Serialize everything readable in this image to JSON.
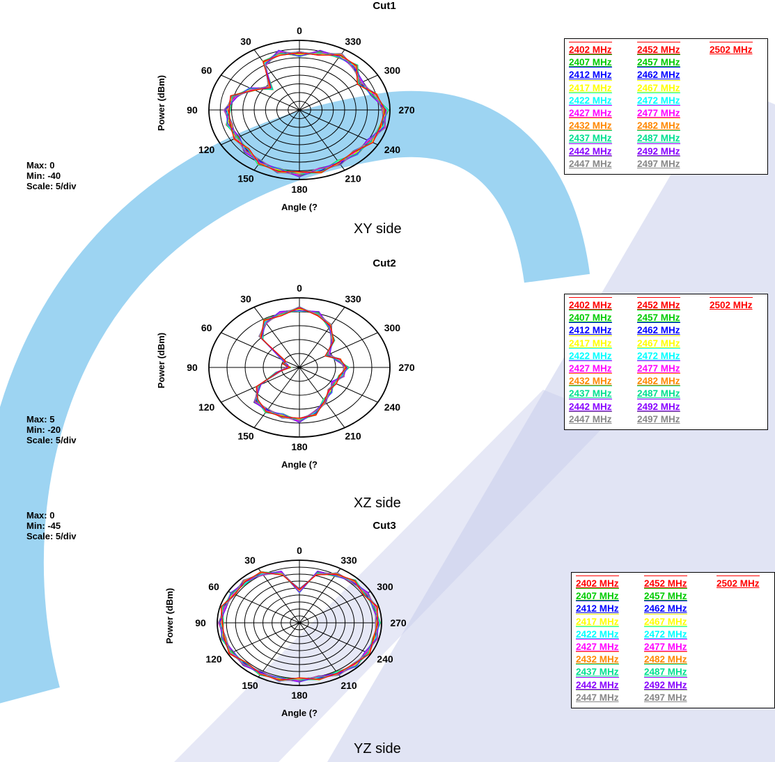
{
  "background": {
    "watermark_colors": {
      "arc": "#8ccdf0",
      "blade": "#c8cdeb"
    }
  },
  "colors": {
    "2402 MHz": "#ff0000",
    "2407 MHz": "#00cc00",
    "2412 MHz": "#0000ff",
    "2417 MHz": "#ffff00",
    "2422 MHz": "#00ffff",
    "2427 MHz": "#ff00ff",
    "2432 MHz": "#ff8800",
    "2437 MHz": "#00e090",
    "2442 MHz": "#8800ff",
    "2447 MHz": "#888888",
    "2452 MHz": "#ff0000",
    "2457 MHz": "#00cc00",
    "2462 MHz": "#0000ff",
    "2467 MHz": "#ffff00",
    "2472 MHz": "#00ffff",
    "2477 MHz": "#ff00ff",
    "2482 MHz": "#ff8800",
    "2487 MHz": "#00e090",
    "2492 MHz": "#8800ff",
    "2497 MHz": "#888888",
    "2502 MHz": "#ff0000"
  },
  "legend_columns": [
    [
      "2402 MHz",
      "2407 MHz",
      "2412 MHz",
      "2417 MHz",
      "2422 MHz",
      "2427 MHz",
      "2432 MHz",
      "2437 MHz",
      "2442 MHz",
      "2447 MHz"
    ],
    [
      "2452 MHz",
      "2457 MHz",
      "2462 MHz",
      "2467 MHz",
      "2472 MHz",
      "2477 MHz",
      "2482 MHz",
      "2487 MHz",
      "2492 MHz",
      "2497 MHz"
    ],
    [
      "2502 MHz"
    ]
  ],
  "chart_data": [
    {
      "type": "polar-line",
      "title": "Cut1",
      "caption": "XY side",
      "xlabel": "Angle (?",
      "ylabel": "Power (dBm)",
      "max_label": "Max: 0",
      "min_label": "Min: -40",
      "scale_label": "Scale: 5/div",
      "rmax": 0,
      "rmin": -40,
      "rstep": 5,
      "angle_ticks": [
        "0",
        "30",
        "60",
        "90",
        "120",
        "150",
        "180",
        "210",
        "240",
        "270",
        "300",
        "330"
      ],
      "angle_direction": "counterclockwise, 0 at top",
      "angles_deg": [
        0,
        15,
        30,
        45,
        60,
        75,
        90,
        105,
        120,
        135,
        150,
        165,
        180,
        195,
        210,
        225,
        240,
        255,
        270,
        285,
        300,
        315,
        330,
        345
      ],
      "base_pattern_dbm": [
        -8,
        -6,
        -9,
        -22,
        -16,
        -10,
        -8,
        -8,
        -8,
        -7,
        -5,
        -4,
        -3,
        -4,
        -5,
        -5,
        -4,
        -2,
        -2,
        -6,
        -9,
        -5,
        -4,
        -6
      ],
      "series_spread_db": 1.5
    },
    {
      "type": "polar-line",
      "title": "Cut2",
      "caption": "XZ side",
      "xlabel": "Angle (?",
      "ylabel": "Power (dBm)",
      "max_label": "Max: 5",
      "min_label": "Min: -20",
      "scale_label": "Scale: 5/div",
      "rmax": 5,
      "rmin": -20,
      "rstep": 5,
      "angle_ticks": [
        "0",
        "30",
        "60",
        "90",
        "120",
        "150",
        "180",
        "210",
        "240",
        "270",
        "300",
        "330"
      ],
      "angle_direction": "counterclockwise, 0 at top",
      "angles_deg": [
        0,
        15,
        30,
        45,
        60,
        75,
        90,
        105,
        120,
        135,
        150,
        165,
        180,
        195,
        210,
        225,
        240,
        255,
        270,
        285,
        300,
        315,
        330,
        345
      ],
      "base_pattern_dbm": [
        1,
        0,
        -1,
        -5,
        -15,
        -16,
        -17,
        -14,
        -7,
        -3,
        -2,
        -2,
        -1,
        -3,
        -6,
        -8,
        -9,
        -8,
        -7,
        -9,
        -11,
        -7,
        -3,
        0
      ],
      "series_spread_db": 0.8
    },
    {
      "type": "polar-line",
      "title": "Cut3",
      "caption": "YZ side",
      "xlabel": "Angle (?",
      "ylabel": "Power (dBm)",
      "max_label": "Max: 0",
      "min_label": "Min: -45",
      "scale_label": "Scale: 5/div",
      "rmax": 0,
      "rmin": -45,
      "rstep": 5,
      "angle_ticks": [
        "0",
        "30",
        "60",
        "90",
        "120",
        "150",
        "180",
        "210",
        "240",
        "270",
        "300",
        "330"
      ],
      "angle_direction": "counterclockwise, 0 at top",
      "angles_deg": [
        0,
        15,
        30,
        45,
        60,
        75,
        90,
        105,
        120,
        135,
        150,
        165,
        180,
        195,
        210,
        225,
        240,
        255,
        270,
        285,
        300,
        315,
        330,
        345
      ],
      "base_pattern_dbm": [
        -22,
        -8,
        -4,
        -3,
        -3,
        -2,
        -2,
        -2,
        -2,
        -3,
        -3,
        -3,
        -4,
        -4,
        -3,
        -2,
        -2,
        -2,
        -2,
        -2,
        -3,
        -3,
        -5,
        -8
      ],
      "series_spread_db": 1.5
    }
  ]
}
